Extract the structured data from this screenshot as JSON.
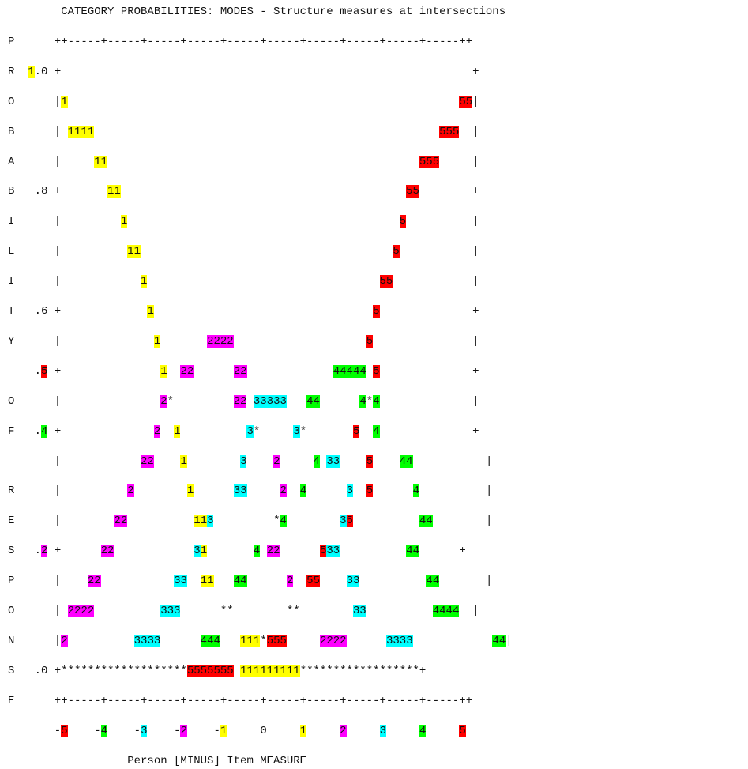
{
  "title": "CATEGORY PROBABILITIES: MODES - Structure measures at intersections",
  "colors": {
    "1": "#ffff00",
    "2": "#ff00ff",
    "3": "#00ffff",
    "4": "#00ff00",
    "5": "#ff0000"
  },
  "lines": [
    "        CATEGORY PROBABILITIES: MODES - Structure measures at intersections",
    "P      ++-----+-----+-----+-----+-----+-----+-----+-----+-----+-----++",
    "R  1.0 +                                                              +",
    "O      |1                                                           55|",
    "B      | 1111                                                    555  |",
    "A      |     11                                               555     |",
    "B   .8 +       11                                           55        +",
    "I      |         1                                         5          |",
    "L      |          11                                      5           |",
    "I      |            1                                   55            |",
    "T   .6 +             1                                 5              +",
    "Y      |              1       2222                    5               |",
    "    .5 +               1  22      22             44444 5              +",
    "O      |               2*         22 33333   44      4*4              |",
    "F   .4 +              2  1          3*     3*       5  4              +",
    "       |            22    1        3    2     4 33    5    44           |",
    "R      |          2        1      33     2  4      3  5      4          |",
    "E      |        22          113         *4        35          44        |",
    "S   .2 +      22            31       4 22      533          44      +",
    "P      |    22           33  11   44      2  55    33          44       |",
    "O      | 2222          333      **        **        33          4444  |",
    "N      |2          3333      444   111*555     2222      3333            44|",
    "S   .0 +*******************5555555 111111111******************+",
    "E      ++-----+-----+-----+-----+-----+-----+-----+-----+-----+-----++",
    "       -5    -4    -3    -2    -1     0     1     2     3     4     5",
    "                  Person [MINUS] Item MEASURE"
  ],
  "chart_data": {
    "type": "line",
    "title": "CATEGORY PROBABILITIES: MODES - Structure measures at intersections",
    "ylabel": "PROBABILITY OF RESPONSE",
    "xlabel": "Person [MINUS] Item MEASURE",
    "xlim": [
      -5,
      5
    ],
    "ylim": [
      0,
      1.0
    ],
    "x_ticks": [
      -5,
      -4,
      -3,
      -2,
      -1,
      0,
      1,
      2,
      3,
      4,
      5
    ],
    "y_ticks": [
      ".0",
      ".2",
      ".4",
      ".5",
      ".6",
      ".8",
      "1.0"
    ],
    "series": [
      {
        "name": "1",
        "x": [
          -5,
          -4.5,
          -4,
          -3.5,
          -3,
          -2.5,
          -2,
          -1.5,
          -1,
          -0.5,
          0
        ],
        "y": [
          0.97,
          0.93,
          0.88,
          0.8,
          0.72,
          0.58,
          0.42,
          0.3,
          0.18,
          0.06,
          0.01
        ]
      },
      {
        "name": "2",
        "x": [
          -5,
          -4,
          -3,
          -2.5,
          -2,
          -1.5,
          -1,
          -0.5,
          0,
          0.5,
          1
        ],
        "y": [
          0.03,
          0.12,
          0.28,
          0.41,
          0.5,
          0.54,
          0.5,
          0.4,
          0.2,
          0.1,
          0.03
        ]
      },
      {
        "name": "3",
        "x": [
          -3,
          -2,
          -1.5,
          -1,
          -0.5,
          0,
          0.5,
          1,
          1.5,
          2,
          3
        ],
        "y": [
          0.03,
          0.12,
          0.2,
          0.33,
          0.44,
          0.46,
          0.44,
          0.33,
          0.2,
          0.12,
          0.03
        ]
      },
      {
        "name": "4",
        "x": [
          -1,
          -0.5,
          0,
          0.5,
          1,
          1.5,
          2,
          2.5,
          3,
          4,
          5
        ],
        "y": [
          0.03,
          0.1,
          0.2,
          0.32,
          0.45,
          0.5,
          0.46,
          0.36,
          0.24,
          0.12,
          0.03
        ]
      },
      {
        "name": "5",
        "x": [
          0,
          0.5,
          1,
          1.5,
          2,
          2.5,
          3,
          3.5,
          4,
          4.5,
          5
        ],
        "y": [
          0.01,
          0.08,
          0.16,
          0.28,
          0.42,
          0.55,
          0.66,
          0.78,
          0.86,
          0.93,
          0.97
        ]
      }
    ]
  }
}
